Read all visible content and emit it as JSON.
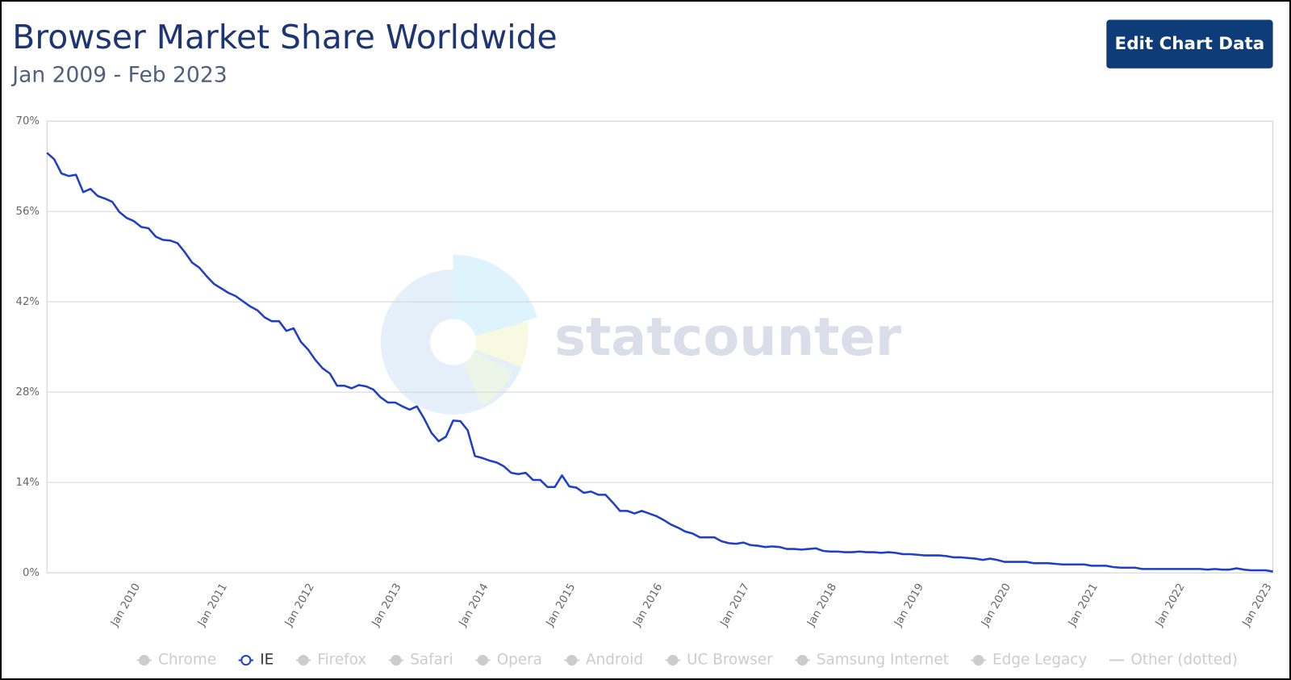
{
  "header": {
    "title": "Browser Market Share Worldwide",
    "subtitle": "Jan 2009 - Feb 2023",
    "button": "Edit Chart Data"
  },
  "chart_data": {
    "type": "line",
    "watermark": "statcounter",
    "x": [
      "Jan 2009",
      "Feb 2009",
      "Mar 2009",
      "Apr 2009",
      "May 2009",
      "Jun 2009",
      "Jul 2009",
      "Aug 2009",
      "Sep 2009",
      "Oct 2009",
      "Nov 2009",
      "Dec 2009",
      "Jan 2010",
      "Feb 2010",
      "Mar 2010",
      "Apr 2010",
      "May 2010",
      "Jun 2010",
      "Jul 2010",
      "Aug 2010",
      "Sep 2010",
      "Oct 2010",
      "Nov 2010",
      "Dec 2010",
      "Jan 2011",
      "Feb 2011",
      "Mar 2011",
      "Apr 2011",
      "May 2011",
      "Jun 2011",
      "Jul 2011",
      "Aug 2011",
      "Sep 2011",
      "Oct 2011",
      "Nov 2011",
      "Dec 2011",
      "Jan 2012",
      "Feb 2012",
      "Mar 2012",
      "Apr 2012",
      "May 2012",
      "Jun 2012",
      "Jul 2012",
      "Aug 2012",
      "Sep 2012",
      "Oct 2012",
      "Nov 2012",
      "Dec 2012",
      "Jan 2013",
      "Feb 2013",
      "Mar 2013",
      "Apr 2013",
      "May 2013",
      "Jun 2013",
      "Jul 2013",
      "Aug 2013",
      "Sep 2013",
      "Oct 2013",
      "Nov 2013",
      "Dec 2013",
      "Jan 2014",
      "Feb 2014",
      "Mar 2014",
      "Apr 2014",
      "May 2014",
      "Jun 2014",
      "Jul 2014",
      "Aug 2014",
      "Sep 2014",
      "Oct 2014",
      "Nov 2014",
      "Dec 2014",
      "Jan 2015",
      "Feb 2015",
      "Mar 2015",
      "Apr 2015",
      "May 2015",
      "Jun 2015",
      "Jul 2015",
      "Aug 2015",
      "Sep 2015",
      "Oct 2015",
      "Nov 2015",
      "Dec 2015",
      "Jan 2016",
      "Feb 2016",
      "Mar 2016",
      "Apr 2016",
      "May 2016",
      "Jun 2016",
      "Jul 2016",
      "Aug 2016",
      "Sep 2016",
      "Oct 2016",
      "Nov 2016",
      "Dec 2016",
      "Jan 2017",
      "Feb 2017",
      "Mar 2017",
      "Apr 2017",
      "May 2017",
      "Jun 2017",
      "Jul 2017",
      "Aug 2017",
      "Sep 2017",
      "Oct 2017",
      "Nov 2017",
      "Dec 2017",
      "Jan 2018",
      "Feb 2018",
      "Mar 2018",
      "Apr 2018",
      "May 2018",
      "Jun 2018",
      "Jul 2018",
      "Aug 2018",
      "Sep 2018",
      "Oct 2018",
      "Nov 2018",
      "Dec 2018",
      "Jan 2019",
      "Feb 2019",
      "Mar 2019",
      "Apr 2019",
      "May 2019",
      "Jun 2019",
      "Jul 2019",
      "Aug 2019",
      "Sep 2019",
      "Oct 2019",
      "Nov 2019",
      "Dec 2019",
      "Jan 2020",
      "Feb 2020",
      "Mar 2020",
      "Apr 2020",
      "May 2020",
      "Jun 2020",
      "Jul 2020",
      "Aug 2020",
      "Sep 2020",
      "Oct 2020",
      "Nov 2020",
      "Dec 2020",
      "Jan 2021",
      "Feb 2021",
      "Mar 2021",
      "Apr 2021",
      "May 2021",
      "Jun 2021",
      "Jul 2021",
      "Aug 2021",
      "Sep 2021",
      "Oct 2021",
      "Nov 2021",
      "Dec 2021",
      "Jan 2022",
      "Feb 2022",
      "Mar 2022",
      "Apr 2022",
      "May 2022",
      "Jun 2022",
      "Jul 2022",
      "Aug 2022",
      "Sep 2022",
      "Oct 2022",
      "Nov 2022",
      "Dec 2022",
      "Jan 2023",
      "Feb 2023"
    ],
    "xticks": [
      "Jan 2010",
      "Jan 2011",
      "Jan 2012",
      "Jan 2013",
      "Jan 2014",
      "Jan 2015",
      "Jan 2016",
      "Jan 2017",
      "Jan 2018",
      "Jan 2019",
      "Jan 2020",
      "Jan 2021",
      "Jan 2022",
      "Jan 2023"
    ],
    "ylim": [
      0,
      70
    ],
    "yticks": [
      {
        "value": 0,
        "label": "0%"
      },
      {
        "value": 14,
        "label": "14%"
      },
      {
        "value": 28,
        "label": "28%"
      },
      {
        "value": 42,
        "label": "42%"
      },
      {
        "value": 56,
        "label": "56%"
      },
      {
        "value": 70,
        "label": "70%"
      }
    ],
    "grid": true,
    "legend": "bottom",
    "series": [
      {
        "name": "Chrome",
        "visible": false
      },
      {
        "name": "IE",
        "visible": true,
        "color": "#1f3fc8",
        "values": [
          65.1,
          64.1,
          61.9,
          61.5,
          61.7,
          59.0,
          59.5,
          58.4,
          58.0,
          57.5,
          55.9,
          55.0,
          54.5,
          53.6,
          53.4,
          52.1,
          51.6,
          51.5,
          51.1,
          49.7,
          48.1,
          47.3,
          46.0,
          44.8,
          44.1,
          43.4,
          42.9,
          42.1,
          41.3,
          40.7,
          39.6,
          39.0,
          39.0,
          37.5,
          37.9,
          35.8,
          34.6,
          33.0,
          31.7,
          30.9,
          29.0,
          29.0,
          28.6,
          29.1,
          28.9,
          28.4,
          27.2,
          26.4,
          26.4,
          25.8,
          25.3,
          25.8,
          23.9,
          21.7,
          20.4,
          21.1,
          23.6,
          23.5,
          22.1,
          18.1,
          17.8,
          17.4,
          17.1,
          16.5,
          15.5,
          15.3,
          15.5,
          14.4,
          14.4,
          13.3,
          13.3,
          15.1,
          13.4,
          13.2,
          12.4,
          12.6,
          12.1,
          12.1,
          10.9,
          9.6,
          9.6,
          9.2,
          9.6,
          9.2,
          8.8,
          8.2,
          7.5,
          7.0,
          6.4,
          6.1,
          5.5,
          5.5,
          5.5,
          4.9,
          4.6,
          4.5,
          4.7,
          4.3,
          4.2,
          4.0,
          4.1,
          4.0,
          3.7,
          3.7,
          3.6,
          3.7,
          3.8,
          3.4,
          3.3,
          3.3,
          3.2,
          3.2,
          3.3,
          3.2,
          3.2,
          3.1,
          3.2,
          3.1,
          2.9,
          2.9,
          2.8,
          2.7,
          2.7,
          2.7,
          2.6,
          2.4,
          2.4,
          2.3,
          2.2,
          2.0,
          2.2,
          2.0,
          1.7,
          1.7,
          1.7,
          1.7,
          1.5,
          1.5,
          1.5,
          1.4,
          1.3,
          1.3,
          1.3,
          1.3,
          1.1,
          1.1,
          1.1,
          0.9,
          0.8,
          0.8,
          0.8,
          0.6,
          0.6,
          0.6,
          0.6,
          0.6,
          0.6,
          0.6,
          0.6,
          0.6,
          0.5,
          0.6,
          0.5,
          0.5,
          0.7,
          0.5,
          0.4,
          0.4,
          0.4,
          0.2
        ]
      },
      {
        "name": "Firefox",
        "visible": false
      },
      {
        "name": "Safari",
        "visible": false
      },
      {
        "name": "Opera",
        "visible": false
      },
      {
        "name": "Android",
        "visible": false
      },
      {
        "name": "UC Browser",
        "visible": false
      },
      {
        "name": "Samsung Internet",
        "visible": false
      },
      {
        "name": "Edge Legacy",
        "visible": false
      },
      {
        "name": "Other (dotted)",
        "visible": false,
        "marker": "line"
      }
    ]
  }
}
